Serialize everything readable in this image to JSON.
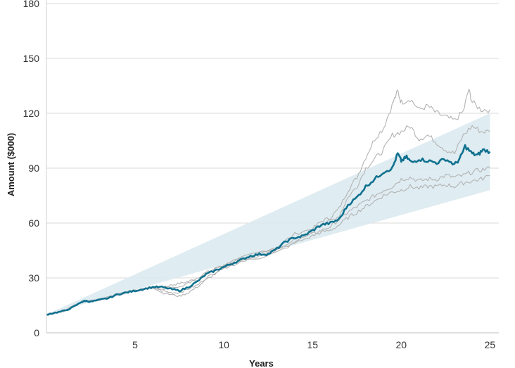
{
  "chart_data": {
    "type": "line",
    "xlabel": "Years",
    "ylabel": "Amount ($000)",
    "xlim": [
      0,
      25.5
    ],
    "ylim": [
      0,
      180
    ],
    "xticks": [
      5,
      10,
      15,
      20,
      25
    ],
    "yticks": [
      0,
      30,
      60,
      90,
      120,
      150,
      180
    ],
    "grid": "horizontal",
    "band": {
      "x": [
        0,
        25
      ],
      "upper": [
        10,
        120
      ],
      "lower": [
        10,
        78
      ],
      "color": "#dbeaf0"
    },
    "series": [
      {
        "role": "highlight",
        "color": "#10718f",
        "x": [
          0,
          0.5,
          1,
          1.5,
          2,
          2.2,
          2.5,
          3,
          3.5,
          4,
          4.5,
          5,
          5.5,
          6,
          6.5,
          7,
          7.5,
          8,
          8.5,
          9,
          9.5,
          10,
          10.5,
          11,
          11.5,
          12,
          12.5,
          13,
          13.5,
          14,
          14.5,
          15,
          15.5,
          16,
          16.5,
          17,
          17.5,
          18,
          18.5,
          19,
          19.5,
          19.8,
          20,
          20.3,
          20.6,
          21,
          21.5,
          22,
          22.5,
          23,
          23.3,
          23.6,
          24,
          24.3,
          24.6,
          25
        ],
        "y": [
          10,
          11,
          12,
          14,
          17,
          17.5,
          17,
          18,
          19,
          21,
          22,
          23,
          24,
          25,
          25,
          24,
          23,
          25,
          28,
          32,
          34,
          36,
          38,
          40,
          42,
          43,
          43,
          46,
          50,
          52,
          53,
          56,
          59,
          60,
          62,
          70,
          74,
          80,
          84,
          88,
          90,
          98,
          94,
          96,
          93,
          95,
          94,
          93,
          95,
          92,
          95,
          102,
          98,
          97,
          100,
          99
        ]
      },
      {
        "role": "scenario",
        "color": "#b3b3b3",
        "x": [
          0,
          1,
          2,
          3,
          4,
          5,
          6,
          6.5,
          7,
          7.5,
          8,
          8.5,
          9,
          9.5,
          10,
          11,
          12,
          13,
          14,
          15,
          15.5,
          16,
          16.5,
          17,
          17.5,
          18,
          18.5,
          19,
          19.5,
          19.8,
          20,
          20.5,
          21,
          21.5,
          22,
          22.5,
          23,
          23.5,
          23.8,
          24,
          24.5,
          25
        ],
        "y": [
          10,
          12,
          17,
          18,
          21,
          23,
          25,
          25,
          26,
          27,
          28,
          30,
          33,
          35,
          37,
          41,
          44,
          47,
          54,
          57,
          61,
          63,
          68,
          78,
          85,
          96,
          106,
          112,
          125,
          132,
          126,
          128,
          122,
          124,
          120,
          118,
          116,
          121,
          133,
          126,
          122,
          122
        ]
      },
      {
        "role": "scenario",
        "color": "#b3b3b3",
        "x": [
          0,
          1,
          2,
          3,
          4,
          5,
          6,
          6.5,
          7,
          7.5,
          8,
          8.5,
          9,
          9.5,
          10,
          11,
          12,
          13,
          14,
          15,
          15.5,
          16,
          16.5,
          17,
          17.5,
          18,
          18.5,
          19,
          19.5,
          20,
          20.5,
          21,
          21.5,
          22,
          22.5,
          23,
          23.5,
          24,
          24.5,
          25
        ],
        "y": [
          10,
          12,
          17,
          18,
          21,
          23,
          25,
          24,
          25,
          25,
          27,
          29,
          32,
          35,
          37,
          41,
          43,
          46,
          51,
          55,
          60,
          61,
          64,
          74,
          80,
          90,
          95,
          100,
          108,
          110,
          113,
          106,
          108,
          104,
          100,
          98,
          108,
          113,
          110,
          110
        ]
      },
      {
        "role": "scenario",
        "color": "#b3b3b3",
        "x": [
          0,
          1,
          2,
          3,
          4,
          5,
          6,
          6.5,
          7,
          7.5,
          8,
          8.5,
          9,
          9.5,
          10,
          11,
          12,
          13,
          14,
          15,
          15.5,
          16,
          16.5,
          17,
          17.5,
          18,
          18.5,
          19,
          19.5,
          20,
          20.5,
          21,
          21.5,
          22,
          22.5,
          23,
          23.5,
          24,
          24.5,
          25
        ],
        "y": [
          10,
          12,
          17,
          18,
          21,
          23,
          25,
          23,
          22,
          22,
          24,
          26,
          30,
          33,
          36,
          40,
          42,
          45,
          50,
          54,
          56,
          58,
          62,
          66,
          69,
          72,
          75,
          78,
          80,
          84,
          85,
          83,
          84,
          84,
          86,
          85,
          86,
          88,
          89,
          90
        ]
      },
      {
        "role": "scenario",
        "color": "#b3b3b3",
        "x": [
          0,
          1,
          2,
          3,
          4,
          5,
          6,
          6.5,
          7,
          7.5,
          8,
          8.5,
          9,
          9.5,
          10,
          11,
          12,
          13,
          14,
          15,
          15.5,
          16,
          16.5,
          17,
          17.5,
          18,
          18.5,
          19,
          19.5,
          20,
          20.5,
          21,
          21.5,
          22,
          22.5,
          23,
          23.5,
          24,
          24.5,
          25
        ],
        "y": [
          10,
          12,
          17,
          18,
          21,
          23,
          25,
          22,
          21,
          20,
          22,
          25,
          29,
          32,
          35,
          39,
          41,
          44,
          49,
          53,
          55,
          56,
          59,
          63,
          66,
          69,
          72,
          75,
          77,
          78,
          80,
          79,
          80,
          80,
          81,
          80,
          82,
          83,
          84,
          86
        ]
      }
    ]
  }
}
